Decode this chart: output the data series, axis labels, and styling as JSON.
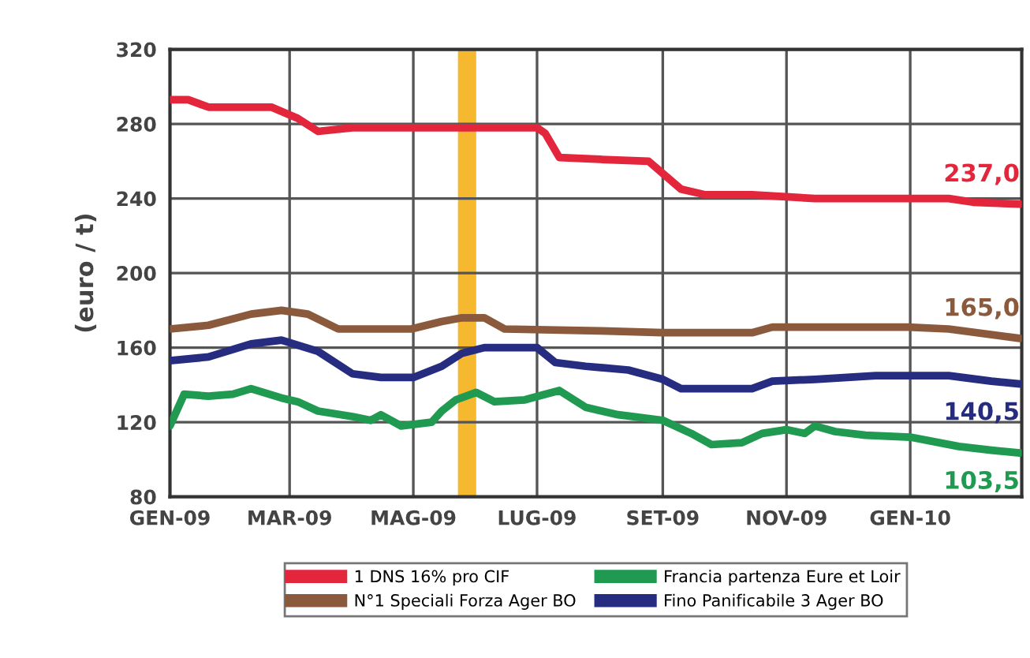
{
  "chart_data": {
    "type": "line",
    "ylabel": "(euro / t)",
    "xlim": [
      "2009-01-01",
      "2010-02-25"
    ],
    "ylim": [
      80,
      320
    ],
    "xticks": [
      {
        "value": "2009-01-01",
        "label": "GEN-09"
      },
      {
        "value": "2009-03-01",
        "label": "MAR-09"
      },
      {
        "value": "2009-05-01",
        "label": "MAG-09"
      },
      {
        "value": "2009-07-01",
        "label": "LUG-09"
      },
      {
        "value": "2009-09-01",
        "label": "SET-09"
      },
      {
        "value": "2009-11-01",
        "label": "NOV-09"
      },
      {
        "value": "2010-01-01",
        "label": "GEN-10"
      }
    ],
    "yticks": [
      80,
      120,
      160,
      200,
      240,
      280,
      320
    ],
    "grid": true,
    "legend": "bottom",
    "marker": "none",
    "line_style": "solid",
    "bands": [
      {
        "axis": "x",
        "from": "2009-05-23",
        "to": "2009-06-01",
        "color": "#f5b82e"
      }
    ],
    "series": [
      {
        "name": "1 DNS 16% pro CIF",
        "color": "#e3263c",
        "x": [
          "2009-01-01",
          "2009-01-10",
          "2009-01-20",
          "2009-02-20",
          "2009-03-05",
          "2009-03-15",
          "2009-04-01",
          "2009-05-01",
          "2009-06-01",
          "2009-07-01",
          "2009-07-05",
          "2009-07-12",
          "2009-08-01",
          "2009-08-25",
          "2009-09-10",
          "2009-09-22",
          "2009-10-15",
          "2009-11-15",
          "2009-12-15",
          "2010-01-20",
          "2010-02-01",
          "2010-02-24"
        ],
        "values": [
          293,
          293,
          289,
          289,
          283,
          276,
          278,
          278,
          278,
          278,
          275,
          262,
          261,
          260,
          245,
          242,
          242,
          240,
          240,
          240,
          238,
          237
        ]
      },
      {
        "name": "N°1 Speciali Forza Ager BO",
        "color": "#8b5a3c",
        "x": [
          "2009-01-01",
          "2009-01-20",
          "2009-02-10",
          "2009-02-25",
          "2009-03-10",
          "2009-03-25",
          "2009-04-30",
          "2009-05-15",
          "2009-05-25",
          "2009-06-05",
          "2009-06-15",
          "2009-08-01",
          "2009-09-01",
          "2009-10-15",
          "2009-10-25",
          "2009-12-31",
          "2010-01-20",
          "2010-02-24"
        ],
        "values": [
          170,
          172,
          178,
          180,
          178,
          170,
          170,
          174,
          176,
          176,
          170,
          169,
          168,
          168,
          171,
          171,
          170,
          165
        ]
      },
      {
        "name": "Francia partenza Eure et Loir",
        "color": "#1f9a50",
        "x": [
          "2009-01-01",
          "2009-01-08",
          "2009-01-20",
          "2009-02-01",
          "2009-02-10",
          "2009-02-25",
          "2009-03-05",
          "2009-03-15",
          "2009-04-01",
          "2009-04-10",
          "2009-04-15",
          "2009-04-25",
          "2009-05-10",
          "2009-05-15",
          "2009-05-22",
          "2009-06-01",
          "2009-06-10",
          "2009-06-25",
          "2009-07-05",
          "2009-07-12",
          "2009-07-25",
          "2009-08-10",
          "2009-09-01",
          "2009-09-15",
          "2009-09-25",
          "2009-10-10",
          "2009-10-20",
          "2009-11-01",
          "2009-11-10",
          "2009-11-15",
          "2009-11-25",
          "2009-12-10",
          "2010-01-01",
          "2010-01-25",
          "2010-02-10",
          "2010-02-24"
        ],
        "values": [
          118,
          135,
          134,
          135,
          138,
          133,
          131,
          126,
          123,
          121,
          124,
          118,
          120,
          126,
          132,
          136,
          131,
          132,
          135,
          137,
          128,
          124,
          121,
          114,
          108,
          109,
          114,
          116,
          114,
          118,
          115,
          113,
          112,
          107,
          105,
          103.5
        ]
      },
      {
        "name": "Fino Panificabile 3 Ager BO",
        "color": "#262c80",
        "x": [
          "2009-01-01",
          "2009-01-20",
          "2009-02-10",
          "2009-02-25",
          "2009-03-15",
          "2009-04-01",
          "2009-04-15",
          "2009-05-01",
          "2009-05-15",
          "2009-05-25",
          "2009-06-05",
          "2009-07-01",
          "2009-07-10",
          "2009-07-25",
          "2009-08-15",
          "2009-09-01",
          "2009-09-10",
          "2009-10-15",
          "2009-10-25",
          "2009-11-15",
          "2009-12-15",
          "2010-01-20",
          "2010-02-10",
          "2010-02-24"
        ],
        "values": [
          153,
          155,
          162,
          164,
          158,
          146,
          144,
          144,
          150,
          157,
          160,
          160,
          152,
          150,
          148,
          143,
          138,
          138,
          142,
          143,
          145,
          145,
          142,
          140.5
        ]
      }
    ],
    "annotations": [
      {
        "text": "237,0",
        "x": "2010-02-24",
        "y": 237
      },
      {
        "text": "165,0",
        "x": "2010-02-24",
        "y": 165
      },
      {
        "text": "140,5",
        "x": "2010-02-24",
        "y": 140.5
      },
      {
        "text": "103,5",
        "x": "2010-02-24",
        "y": 103.5
      }
    ]
  }
}
